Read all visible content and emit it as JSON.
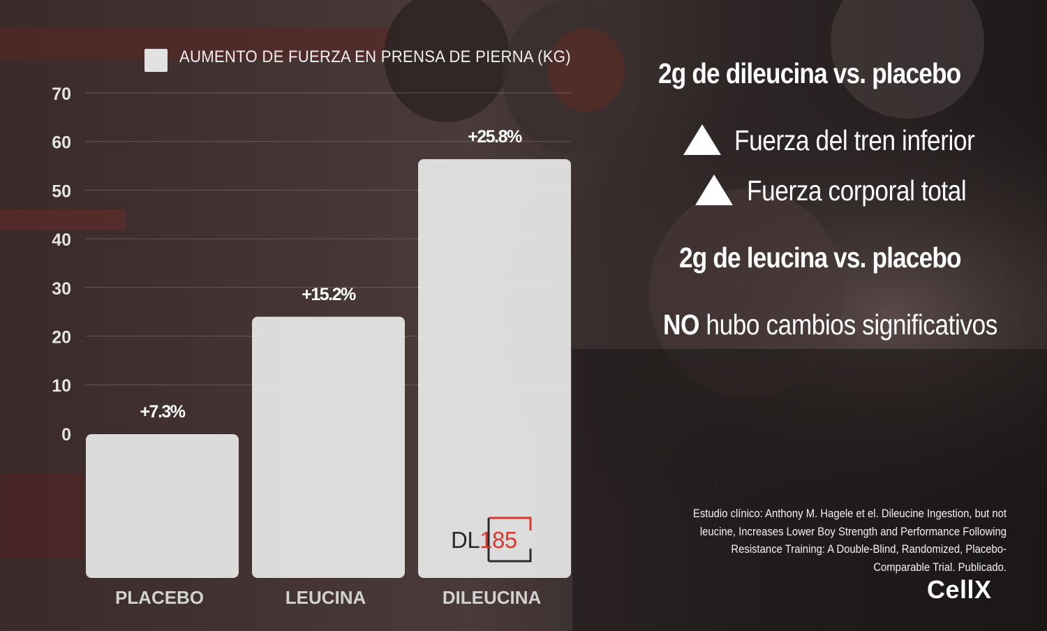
{
  "chart_data": {
    "type": "bar",
    "legend": "AUMENTO DE FUERZA EN PRENSA DE PIERNA (KG)",
    "categories": [
      "PLACEBO",
      "LEUCINA",
      "DILEUCINA"
    ],
    "values": [
      7.3,
      15.2,
      25.8
    ],
    "data_labels": [
      "+7.3%",
      "+15.2%",
      "+25.8%"
    ],
    "yticks": [
      "70",
      "60",
      "50",
      "40",
      "30",
      "20",
      "10",
      "0"
    ],
    "bar_color": "#e8e8e8",
    "grid": true
  },
  "right_panel": {
    "heading1": "2g de dileucina vs. placebo",
    "bullet1": "Fuerza del tren inferior",
    "bullet2": "Fuerza corporal total",
    "heading2": "2g de leucina vs. placebo",
    "conclusion_bold": "NO",
    "conclusion_rest": " hubo cambios significativos"
  },
  "citation": "Estudio clínico: Anthony M. Hagele et el. Dileucine Ingestion, but not leucine, Increases Lower Boy Strength and Performance Following Resistance Training: A Double-Blind, Randomized, Placebo-Comparable Trial. Publicado.",
  "brand": "CellX",
  "product_logo": {
    "prefix": "DL",
    "number": "185"
  }
}
